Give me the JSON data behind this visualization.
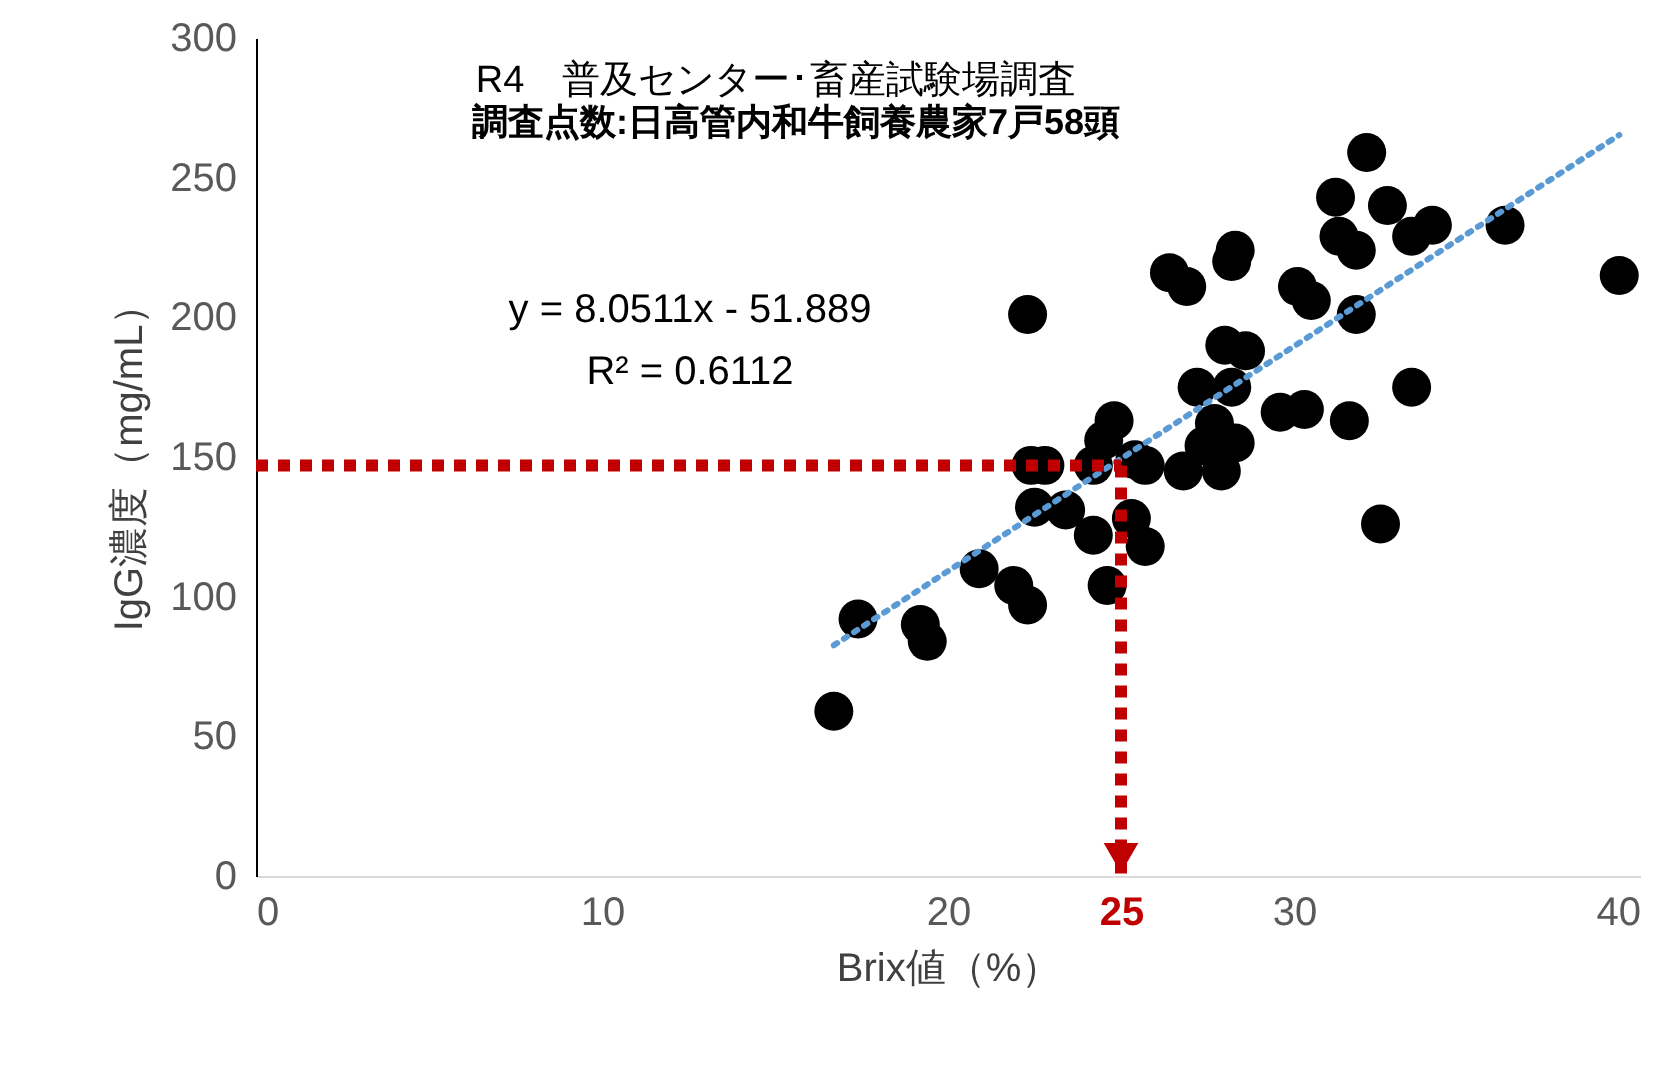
{
  "chart_data": {
    "type": "scatter",
    "title": "R4　普及センター･畜産試験場調査",
    "subtitle": "調査点数:日高管内和牛飼養農家7戸58頭",
    "xlabel": "Brix値（%）",
    "ylabel": "IgG濃度（mg/mL）",
    "annotations": [
      "y = 8.0511x - 51.889",
      "R² = 0.6112"
    ],
    "xlim": [
      0,
      40
    ],
    "xticks": [
      0,
      10,
      20,
      25,
      30,
      40
    ],
    "ylim": [
      0,
      300
    ],
    "yticks": [
      0,
      50,
      100,
      150,
      200,
      250,
      300
    ],
    "grid": false,
    "marker": "circle",
    "ref_lines": [
      {
        "axis": "y",
        "value": 147,
        "color": "#c00000",
        "line_style": "dashed"
      },
      {
        "axis": "x",
        "value": 25,
        "color": "#c00000",
        "line_style": "dashed"
      }
    ],
    "series": [
      {
        "color": "#000000",
        "x": [
          32.1,
          31.2,
          32.7,
          34.0,
          33.4,
          31.3,
          31.8,
          36.1,
          39.4,
          26.4,
          26.9,
          28.3,
          28.2,
          30.1,
          30.5,
          31.8,
          22.3,
          28.0,
          28.6,
          27.2,
          28.2,
          33.4,
          29.6,
          30.3,
          31.6,
          24.8,
          24.5,
          27.7,
          28.3,
          27.4,
          22.4,
          22.8,
          24.2,
          25.7,
          26.8,
          27.9,
          25.4,
          22.5,
          23.4,
          24.2,
          25.3,
          25.7,
          24.6,
          32.5,
          20.9,
          21.9,
          22.3,
          17.4,
          19.2,
          19.4,
          16.7
        ],
        "values": [
          259,
          243,
          240,
          233,
          229,
          229,
          224,
          233,
          215,
          216,
          211,
          224,
          220,
          211,
          206,
          201,
          201,
          190,
          188,
          175,
          175,
          175,
          166,
          167,
          163,
          163,
          156,
          162,
          155,
          154,
          147,
          147,
          147,
          147,
          145,
          145,
          149,
          132,
          131,
          122,
          128,
          118,
          104,
          126,
          110,
          104,
          97,
          92,
          90,
          84,
          59
        ]
      },
      {
        "type": "line",
        "color": "#5b9bd5",
        "line_style": "dotted",
        "marker": "none",
        "x": [
          16.7,
          39.4
        ],
        "values": [
          82.6,
          265.3
        ]
      }
    ]
  }
}
